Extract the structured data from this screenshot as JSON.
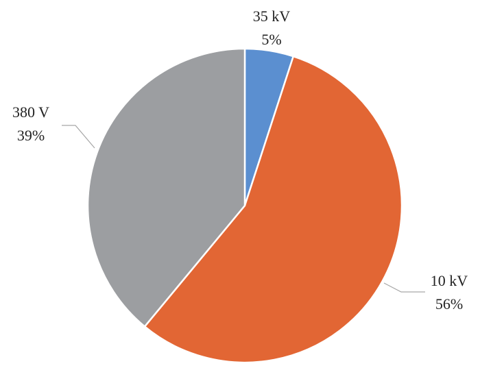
{
  "chart_data": {
    "type": "pie",
    "categories": [
      "35 kV",
      "10 kV",
      "380 V"
    ],
    "values": [
      5,
      56,
      39
    ],
    "value_labels": [
      "5%",
      "56%",
      "39%"
    ],
    "colors": [
      "#5b8fd0",
      "#e26634",
      "#9c9ea1"
    ]
  }
}
